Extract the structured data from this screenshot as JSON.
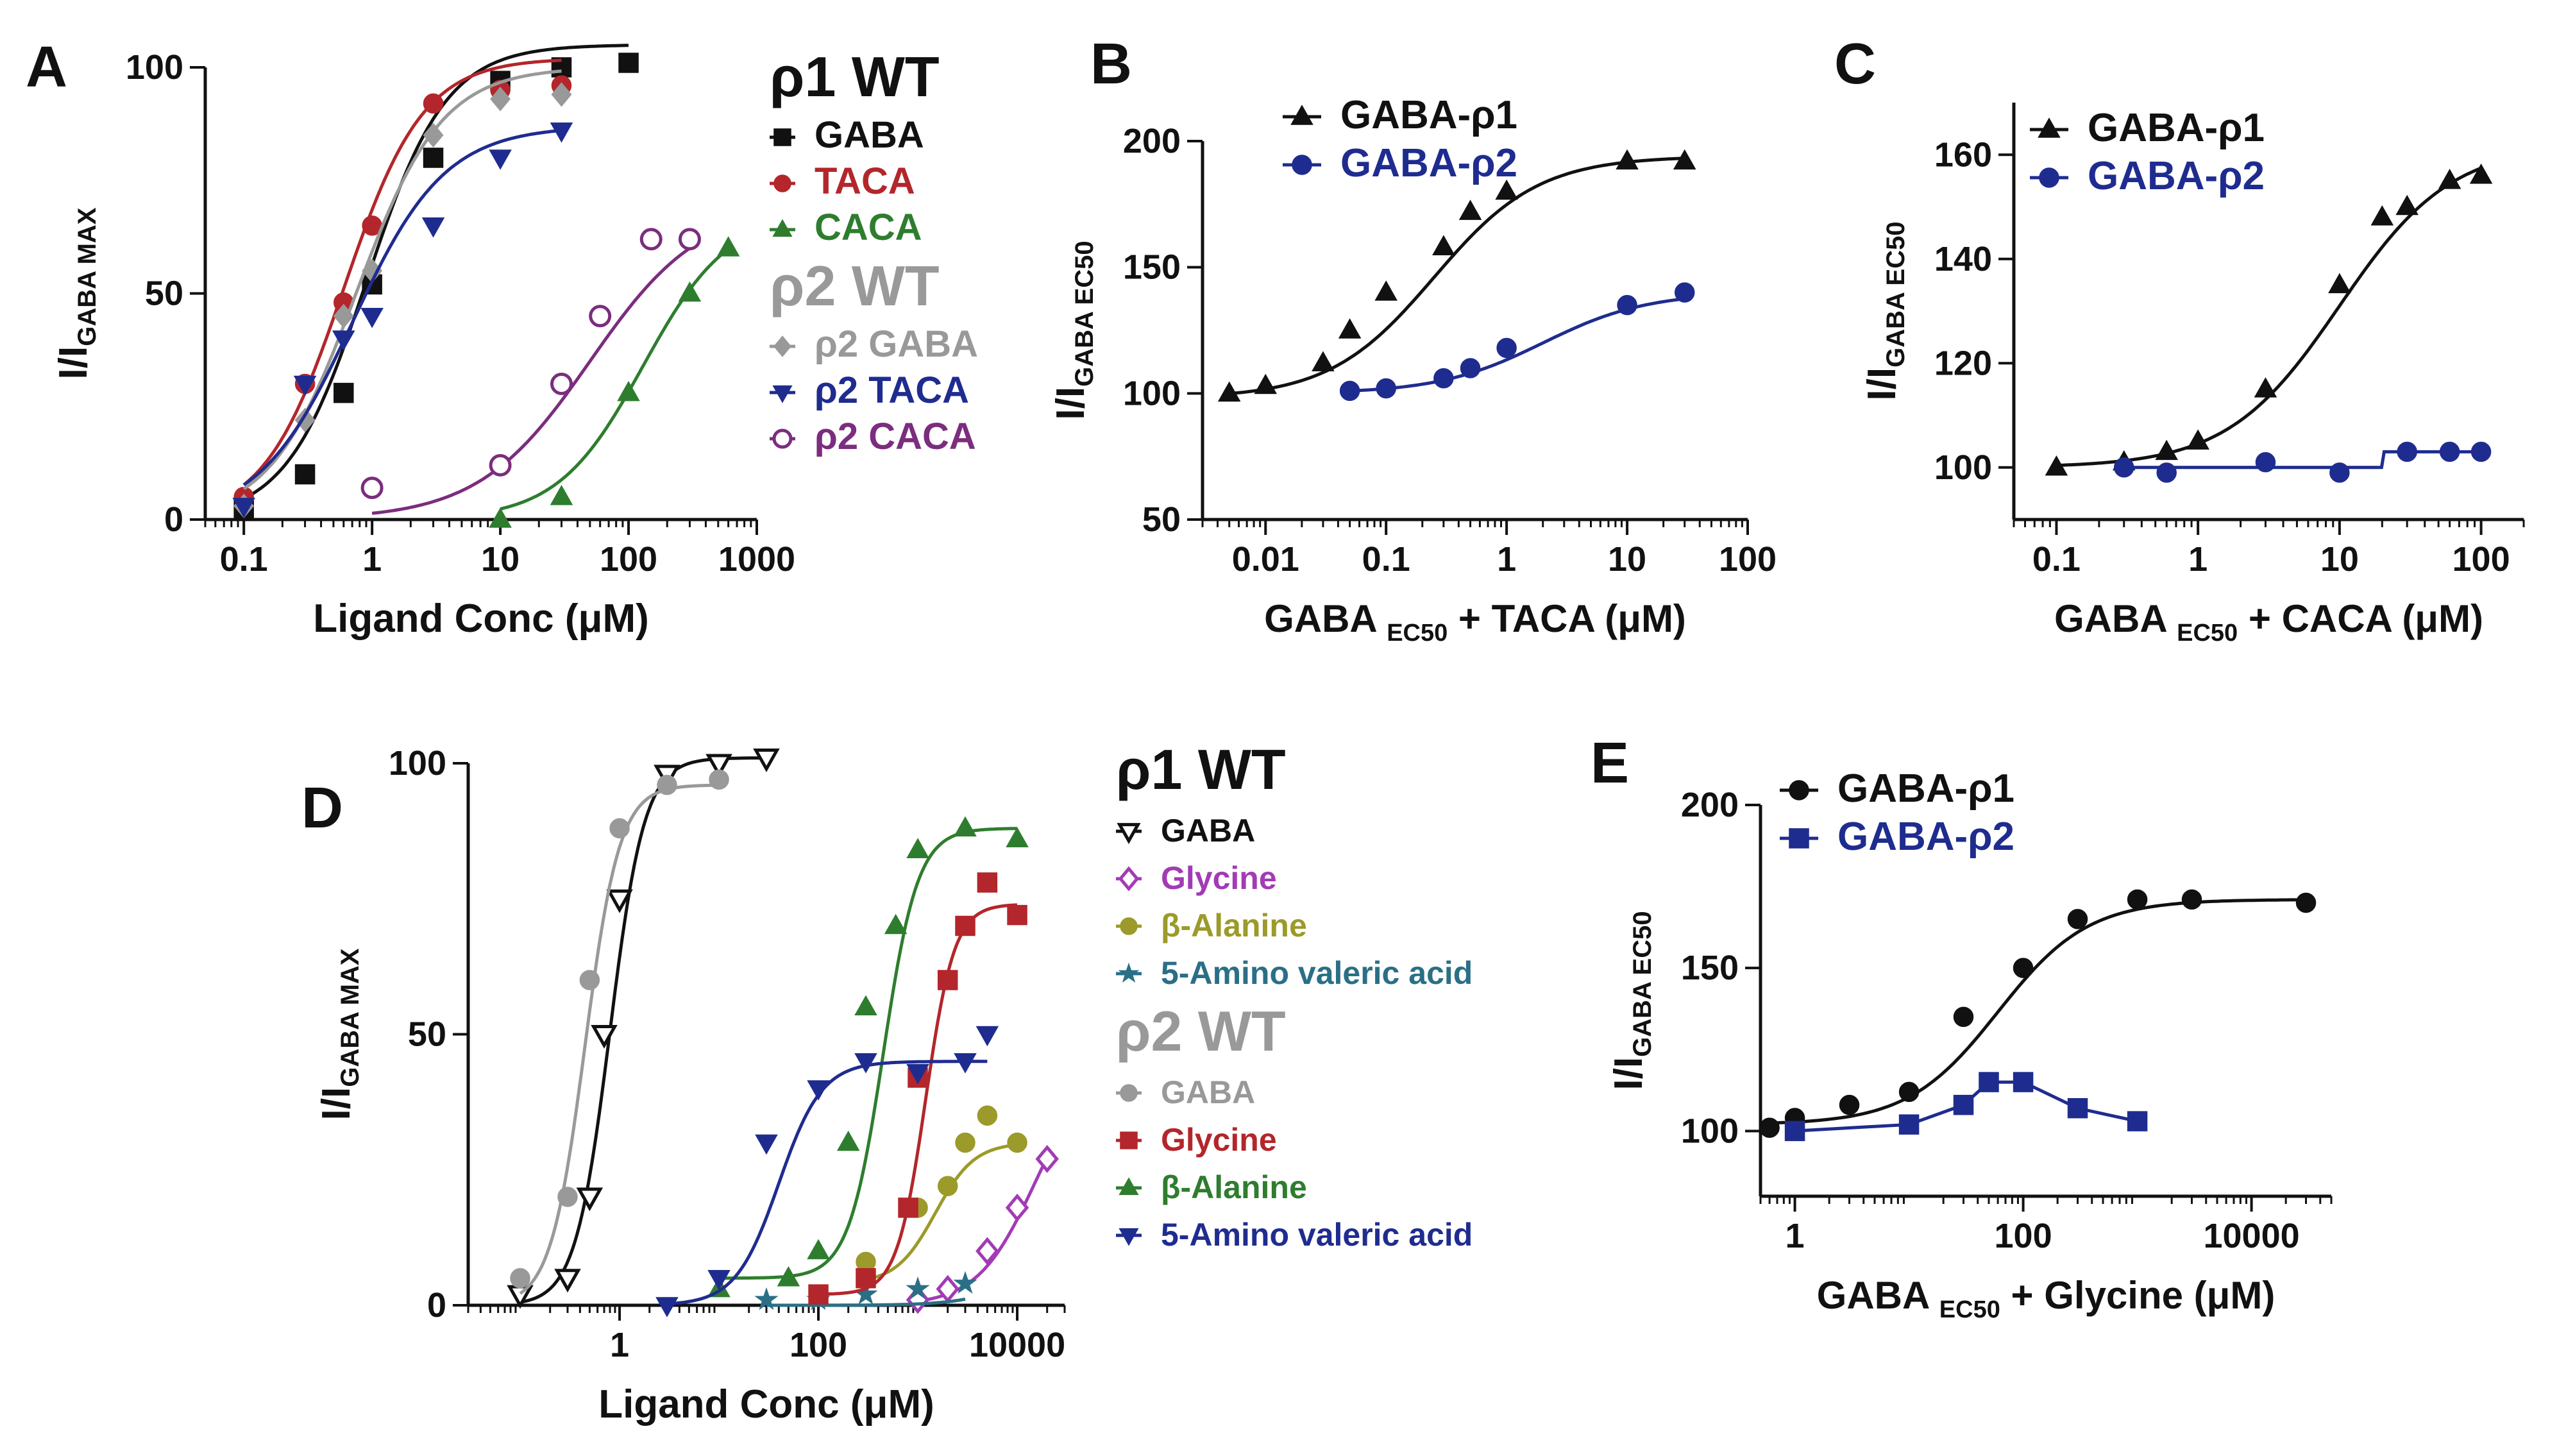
{
  "figure": "Multi-panel dose-response figure",
  "colors": {
    "black": "#111111",
    "red": "#b3262b",
    "green": "#2e7d2e",
    "grey": "#999999",
    "navy": "#1f2c8f",
    "purple": "#7b2d7e",
    "magenta": "#a23bb5",
    "olive": "#9c9a2a",
    "teal": "#2a6f86"
  },
  "chart_data": [
    {
      "panel": "A",
      "type": "scatter",
      "xscale": "log",
      "xlabel": "Ligand Conc (μM)",
      "ylabel": {
        "main": "I/I",
        "sub": "GABA MAX"
      },
      "xlim": [
        0.05,
        1000
      ],
      "ylim": [
        0,
        100
      ],
      "xticks": [
        0.1,
        1,
        10,
        100,
        1000
      ],
      "xticklabels": [
        "0.1",
        "1",
        "10",
        "100",
        "1000"
      ],
      "yticks": [
        0,
        50,
        100
      ],
      "yticklabels": [
        "0",
        "50",
        "100"
      ],
      "legend_groups": [
        {
          "title": "ρ1 WT",
          "color": "#111111",
          "entries": [
            0,
            1,
            2
          ]
        },
        {
          "title": "ρ2 WT",
          "color": "#999999",
          "entries": [
            3,
            4,
            5
          ]
        }
      ],
      "series": [
        {
          "name": "GABA",
          "color": "#111111",
          "marker": "square",
          "fit": {
            "top": 105,
            "ec50": 0.9,
            "hill": 1.4
          },
          "x": [
            0.1,
            0.3,
            0.6,
            1,
            3,
            10,
            30,
            100
          ],
          "y": [
            2,
            10,
            28,
            52,
            80,
            97,
            100,
            101
          ]
        },
        {
          "name": "TACA",
          "color": "#b3262b",
          "marker": "circle",
          "fit": {
            "top": 102,
            "ec50": 0.6,
            "hill": 1.4
          },
          "x": [
            0.1,
            0.3,
            0.6,
            1,
            3,
            10,
            30
          ],
          "y": [
            5,
            30,
            48,
            65,
            92,
            95,
            96
          ]
        },
        {
          "name": "CACA",
          "color": "#2e7d2e",
          "marker": "triangle-up",
          "fit": {
            "top": 68,
            "ec50": 130,
            "hill": 1.3
          },
          "x": [
            10,
            30,
            100,
            300,
            600
          ],
          "y": [
            0,
            5,
            28,
            50,
            60
          ]
        },
        {
          "name": "ρ2 GABA",
          "color": "#999999",
          "marker": "diamond",
          "fit": {
            "top": 100,
            "ec50": 0.75,
            "hill": 1.3
          },
          "x": [
            0.1,
            0.3,
            0.6,
            1,
            3,
            10,
            30
          ],
          "y": [
            3,
            22,
            45,
            55,
            85,
            93,
            94
          ]
        },
        {
          "name": "ρ2 TACA",
          "color": "#1f2c8f",
          "marker": "triangle-down",
          "fit": {
            "top": 87,
            "ec50": 0.7,
            "hill": 1.2
          },
          "x": [
            0.1,
            0.3,
            0.6,
            1,
            3,
            10,
            30
          ],
          "y": [
            3,
            30,
            40,
            45,
            65,
            80,
            86
          ]
        },
        {
          "name": "ρ2 CACA",
          "color": "#7b2d7e",
          "marker": "circle-open",
          "fit": {
            "top": 70,
            "ec50": 50,
            "hill": 1.0
          },
          "x": [
            1,
            10,
            30,
            60,
            150,
            300
          ],
          "y": [
            7,
            12,
            30,
            45,
            62,
            62
          ]
        }
      ]
    },
    {
      "panel": "B",
      "type": "scatter",
      "xscale": "log",
      "xlabel": {
        "pre": "GABA",
        "sub": "EC50",
        "post": "+ TACA (μM)"
      },
      "ylabel": {
        "main": "I/I",
        "sub": "GABA EC50"
      },
      "xlim": [
        0.003,
        100
      ],
      "ylim": [
        50,
        200
      ],
      "xticks": [
        0.01,
        0.1,
        1,
        10,
        100
      ],
      "xticklabels": [
        "0.01",
        "0.1",
        "1",
        "10",
        "100"
      ],
      "yticks": [
        50,
        100,
        150,
        200
      ],
      "yticklabels": [
        "50",
        "100",
        "150",
        "200"
      ],
      "series": [
        {
          "name": "GABA-ρ1",
          "color": "#111111",
          "marker": "triangle-up",
          "fit": {
            "bottom": 98,
            "top": 194,
            "ec50": 0.25,
            "hill": 1.0
          },
          "x": [
            0.005,
            0.01,
            0.03,
            0.05,
            0.1,
            0.3,
            0.5,
            1,
            10,
            30
          ],
          "y": [
            100,
            103,
            112,
            125,
            140,
            158,
            172,
            180,
            192,
            192
          ]
        },
        {
          "name": "GABA-ρ2",
          "color": "#1f2c8f",
          "marker": "circle",
          "fit": {
            "bottom": 100,
            "top": 140,
            "ec50": 2,
            "hill": 1.0
          },
          "x": [
            0.05,
            0.1,
            0.3,
            0.5,
            1,
            10,
            30
          ],
          "y": [
            101,
            102,
            106,
            110,
            118,
            135,
            140
          ]
        }
      ]
    },
    {
      "panel": "C",
      "type": "scatter",
      "xscale": "log",
      "xlabel": {
        "pre": "GABA",
        "sub": "EC50",
        "post": "+ CACA (μM)"
      },
      "ylabel": {
        "main": "I/I",
        "sub": "GABA EC50"
      },
      "xlim": [
        0.05,
        200
      ],
      "ylim": [
        90,
        170
      ],
      "xticks": [
        0.1,
        1,
        10,
        100
      ],
      "xticklabels": [
        "0.1",
        "1",
        "10",
        "100"
      ],
      "yticks": [
        100,
        120,
        140,
        160
      ],
      "yticklabels": [
        "100",
        "120",
        "140",
        "160"
      ],
      "series": [
        {
          "name": "GABA-ρ1",
          "color": "#111111",
          "marker": "triangle-up",
          "fit": {
            "bottom": 100,
            "top": 162,
            "ec50": 10,
            "hill": 1.1
          },
          "x": [
            0.1,
            0.3,
            0.6,
            1,
            3,
            10,
            20,
            30,
            60,
            100
          ],
          "y": [
            100,
            101,
            103,
            105,
            115,
            135,
            148,
            150,
            155,
            156
          ]
        },
        {
          "name": "GABA-ρ2",
          "color": "#1f2c8f",
          "marker": "circle",
          "fit": {
            "flat": 100,
            "step_at": 20,
            "step_to": 103
          },
          "x": [
            0.3,
            0.6,
            3,
            10,
            30,
            60,
            100
          ],
          "y": [
            100,
            99,
            101,
            99,
            103,
            103,
            103
          ]
        }
      ]
    },
    {
      "panel": "D",
      "type": "scatter",
      "xscale": "log",
      "xlabel": "Ligand Conc (μM)",
      "ylabel": {
        "main": "I/I",
        "sub": "GABA MAX"
      },
      "xlim": [
        0.03,
        30000
      ],
      "ylim": [
        0,
        100
      ],
      "xticks": [
        1,
        100,
        10000
      ],
      "xticklabels": [
        "1",
        "100",
        "10000"
      ],
      "yticks": [
        0,
        50,
        100
      ],
      "yticklabels": [
        "0",
        "50",
        "100"
      ],
      "legend_groups": [
        {
          "title": "ρ1 WT",
          "color": "#111111",
          "entries": [
            0,
            1,
            2,
            3
          ]
        },
        {
          "title": "ρ2 WT",
          "color": "#999999",
          "entries": [
            4,
            5,
            6,
            7
          ]
        }
      ],
      "series": [
        {
          "name": "GABA",
          "color": "#111111",
          "marker": "triangle-down-open",
          "fit": {
            "top": 101,
            "ec50": 0.8,
            "hill": 2.5
          },
          "x": [
            0.1,
            0.3,
            0.5,
            0.7,
            1,
            3,
            10,
            30
          ],
          "y": [
            2,
            5,
            20,
            50,
            75,
            98,
            100,
            101
          ]
        },
        {
          "name": "Glycine",
          "color": "#a23bb5",
          "marker": "diamond-open",
          "fit": {
            "top": 45,
            "ec50": 15000,
            "hill": 1.5
          },
          "x": [
            1000,
            2000,
            5000,
            10000,
            20000
          ],
          "y": [
            1,
            3,
            10,
            18,
            27
          ]
        },
        {
          "name": "β-Alanine",
          "color": "#9c9a2a",
          "marker": "circle",
          "fit": {
            "bottom": 4,
            "top": 30,
            "ec50": 1500,
            "hill": 2.2
          },
          "x": [
            300,
            1000,
            2000,
            3000,
            5000,
            10000
          ],
          "y": [
            8,
            18,
            22,
            30,
            35,
            30
          ]
        },
        {
          "name": "5-Amino valeric acid",
          "color": "#2a6f86",
          "marker": "star",
          "fit": {
            "top": 8,
            "ec50": 10000,
            "hill": 1.5
          },
          "x": [
            30,
            100,
            300,
            1000,
            3000
          ],
          "y": [
            1,
            1,
            2,
            3,
            4
          ]
        },
        {
          "name": "GABA",
          "color": "#999999",
          "marker": "circle",
          "fit": {
            "top": 96,
            "ec50": 0.45,
            "hill": 2.5
          },
          "x": [
            0.1,
            0.3,
            0.5,
            1,
            3,
            10
          ],
          "y": [
            5,
            20,
            60,
            88,
            96,
            97
          ]
        },
        {
          "name": "Glycine",
          "color": "#b3262b",
          "marker": "square",
          "fit": {
            "bottom": 2,
            "top": 74,
            "ec50": 1200,
            "hill": 3
          },
          "x": [
            100,
            300,
            800,
            1000,
            2000,
            3000,
            5000,
            10000
          ],
          "y": [
            2,
            5,
            18,
            42,
            60,
            70,
            78,
            72
          ]
        },
        {
          "name": "β-Alanine",
          "color": "#2e7d2e",
          "marker": "triangle-up",
          "fit": {
            "bottom": 5,
            "top": 88,
            "ec50": 450,
            "hill": 2.5
          },
          "x": [
            10,
            50,
            100,
            200,
            300,
            600,
            1000,
            3000,
            10000
          ],
          "y": [
            3,
            5,
            10,
            30,
            55,
            70,
            84,
            88,
            86
          ]
        },
        {
          "name": "5-Amino valeric acid",
          "color": "#1f2c8f",
          "marker": "triangle-down",
          "fit": {
            "top": 45,
            "ec50": 40,
            "hill": 2
          },
          "x": [
            3,
            10,
            30,
            100,
            300,
            1000,
            3000,
            5000
          ],
          "y": [
            0,
            5,
            30,
            40,
            45,
            43,
            45,
            50
          ]
        }
      ]
    },
    {
      "panel": "E",
      "type": "scatter",
      "xscale": "log",
      "xlabel": {
        "pre": "GABA",
        "sub": "EC50",
        "post": "+ Glycine (μM)"
      },
      "ylabel": {
        "main": "I/I",
        "sub": "GABA EC50"
      },
      "xlim": [
        0.5,
        50000
      ],
      "ylim": [
        80,
        200
      ],
      "xticks": [
        1,
        100,
        10000
      ],
      "xticklabels": [
        "1",
        "100",
        "10000"
      ],
      "yticks": [
        100,
        150,
        200
      ],
      "yticklabels": [
        "100",
        "150",
        "200"
      ],
      "series": [
        {
          "name": "GABA-ρ1",
          "color": "#111111",
          "marker": "circle",
          "fit": {
            "bottom": 102,
            "top": 171,
            "ec50": 60,
            "hill": 1.1
          },
          "x": [
            0.6,
            1,
            3,
            10,
            30,
            100,
            300,
            1000,
            3000,
            30000
          ],
          "y": [
            101,
            104,
            108,
            112,
            135,
            150,
            165,
            171,
            171,
            170
          ]
        },
        {
          "name": "GABA-ρ2",
          "color": "#1f2c8f",
          "marker": "square",
          "x": [
            1,
            10,
            30,
            50,
            100,
            300,
            1000
          ],
          "y": [
            100,
            102,
            108,
            115,
            115,
            107,
            103
          ]
        }
      ]
    }
  ],
  "panel_labels": [
    "A",
    "B",
    "C",
    "D",
    "E"
  ]
}
